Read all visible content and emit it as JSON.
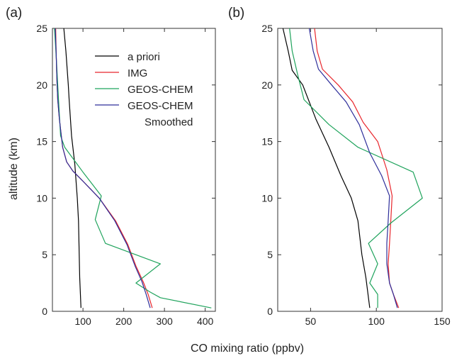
{
  "shared": {
    "xlabel": "CO mixing ratio (ppbv)",
    "ylabel": "altitude (km)"
  },
  "legend": {
    "position": "top-right of panel (a)",
    "entries": [
      {
        "label": "a priori",
        "color": "#000000"
      },
      {
        "label": "IMG",
        "color": "#e8262c"
      },
      {
        "label": "GEOS-CHEM",
        "color": "#1fa35c"
      },
      {
        "label": "GEOS-CHEM",
        "label2": "Smoothed",
        "color": "#2e2e9a"
      }
    ]
  },
  "chart_data": [
    {
      "type": "line",
      "panel_label": "(a)",
      "xlim": [
        25,
        425
      ],
      "ylim": [
        0,
        25
      ],
      "xticks": [
        100,
        200,
        300,
        400
      ],
      "yticks": [
        0,
        5,
        10,
        15,
        20,
        25
      ],
      "grid": false,
      "series": [
        {
          "name": "a priori",
          "color": "#000000",
          "points": [
            [
              95,
              0.3
            ],
            [
              92,
              3
            ],
            [
              89,
              8
            ],
            [
              86,
              10
            ],
            [
              80,
              13
            ],
            [
              72,
              15.5
            ],
            [
              66,
              18.7
            ],
            [
              64,
              20
            ],
            [
              58,
              23
            ],
            [
              53,
              25
            ]
          ]
        },
        {
          "name": "IMG",
          "color": "#e8262c",
          "points": [
            [
              270,
              0.3
            ],
            [
              260,
              1.5
            ],
            [
              248,
              2.6
            ],
            [
              230,
              4
            ],
            [
              210,
              5.9
            ],
            [
              180,
              8
            ],
            [
              140,
              10
            ],
            [
              100,
              11.5
            ],
            [
              75,
              12.4
            ],
            [
              60,
              13.2
            ],
            [
              50,
              14.5
            ],
            [
              42,
              17
            ],
            [
              38,
              18.7
            ],
            [
              36,
              20.5
            ],
            [
              34,
              23
            ],
            [
              33,
              25
            ]
          ]
        },
        {
          "name": "GEOS-CHEM",
          "color": "#1fa35c",
          "points": [
            [
              415,
              0.3
            ],
            [
              290,
              1.2
            ],
            [
              265,
              1.7
            ],
            [
              230,
              2.5
            ],
            [
              290,
              4.2
            ],
            [
              155,
              6
            ],
            [
              130,
              8.1
            ],
            [
              145,
              10.2
            ],
            [
              100,
              12.3
            ],
            [
              55,
              14.5
            ],
            [
              45,
              15.5
            ],
            [
              40,
              18.7
            ],
            [
              35,
              22
            ],
            [
              30,
              25
            ]
          ]
        },
        {
          "name": "GEOS-CHEM Smoothed",
          "color": "#2e2e9a",
          "points": [
            [
              265,
              0.3
            ],
            [
              255,
              1.5
            ],
            [
              245,
              2.6
            ],
            [
              228,
              4
            ],
            [
              208,
              5.9
            ],
            [
              178,
              8
            ],
            [
              140,
              10
            ],
            [
              100,
              11.5
            ],
            [
              75,
              12.4
            ],
            [
              60,
              13.2
            ],
            [
              50,
              14.5
            ],
            [
              42,
              17
            ],
            [
              38,
              18.7
            ],
            [
              36,
              20.5
            ],
            [
              34,
              23
            ],
            [
              32,
              25
            ]
          ]
        }
      ]
    },
    {
      "type": "line",
      "panel_label": "(b)",
      "xlim": [
        25,
        150
      ],
      "ylim": [
        0,
        25
      ],
      "xticks": [
        50,
        100,
        150
      ],
      "yticks": [
        0,
        5,
        10,
        15,
        20,
        25
      ],
      "grid": false,
      "series": [
        {
          "name": "a priori",
          "color": "#000000",
          "points": [
            [
              95,
              0.3
            ],
            [
              92,
              3
            ],
            [
              89,
              5
            ],
            [
              86,
              8
            ],
            [
              81,
              10
            ],
            [
              73,
              12
            ],
            [
              64,
              14.5
            ],
            [
              54,
              17
            ],
            [
              44,
              20
            ],
            [
              36,
              21.3
            ],
            [
              33,
              23
            ],
            [
              29,
              25
            ]
          ]
        },
        {
          "name": "IMG",
          "color": "#e8262c",
          "points": [
            [
              117,
              0.3
            ],
            [
              113,
              1.5
            ],
            [
              110,
              2.5
            ],
            [
              109,
              4.2
            ],
            [
              110,
              6
            ],
            [
              111,
              8
            ],
            [
              112,
              10.2
            ],
            [
              108,
              12.5
            ],
            [
              101,
              15
            ],
            [
              90,
              16.7
            ],
            [
              82,
              18.5
            ],
            [
              71,
              20
            ],
            [
              59,
              21.4
            ],
            [
              55,
              23
            ],
            [
              53,
              25
            ]
          ]
        },
        {
          "name": "GEOS-CHEM",
          "color": "#1fa35c",
          "points": [
            [
              101,
              0.3
            ],
            [
              101,
              1.5
            ],
            [
              95,
              2.5
            ],
            [
              101,
              4.2
            ],
            [
              94,
              6
            ],
            [
              111,
              7.8
            ],
            [
              135,
              10
            ],
            [
              128,
              12.3
            ],
            [
              86,
              14.5
            ],
            [
              64,
              16.5
            ],
            [
              45,
              18.7
            ],
            [
              40,
              21
            ],
            [
              36,
              23
            ],
            [
              34,
              25
            ]
          ]
        },
        {
          "name": "GEOS-CHEM Smoothed",
          "color": "#2e2e9a",
          "points": [
            [
              116,
              0.3
            ],
            [
              113,
              1.5
            ],
            [
              110,
              2.5
            ],
            [
              108,
              4.2
            ],
            [
              108,
              6
            ],
            [
              109,
              8
            ],
            [
              110,
              10.2
            ],
            [
              104,
              12
            ],
            [
              95,
              14
            ],
            [
              87,
              16.5
            ],
            [
              77,
              18.5
            ],
            [
              66,
              20
            ],
            [
              56,
              21.4
            ],
            [
              52,
              23
            ],
            [
              49,
              25
            ]
          ]
        }
      ]
    }
  ]
}
